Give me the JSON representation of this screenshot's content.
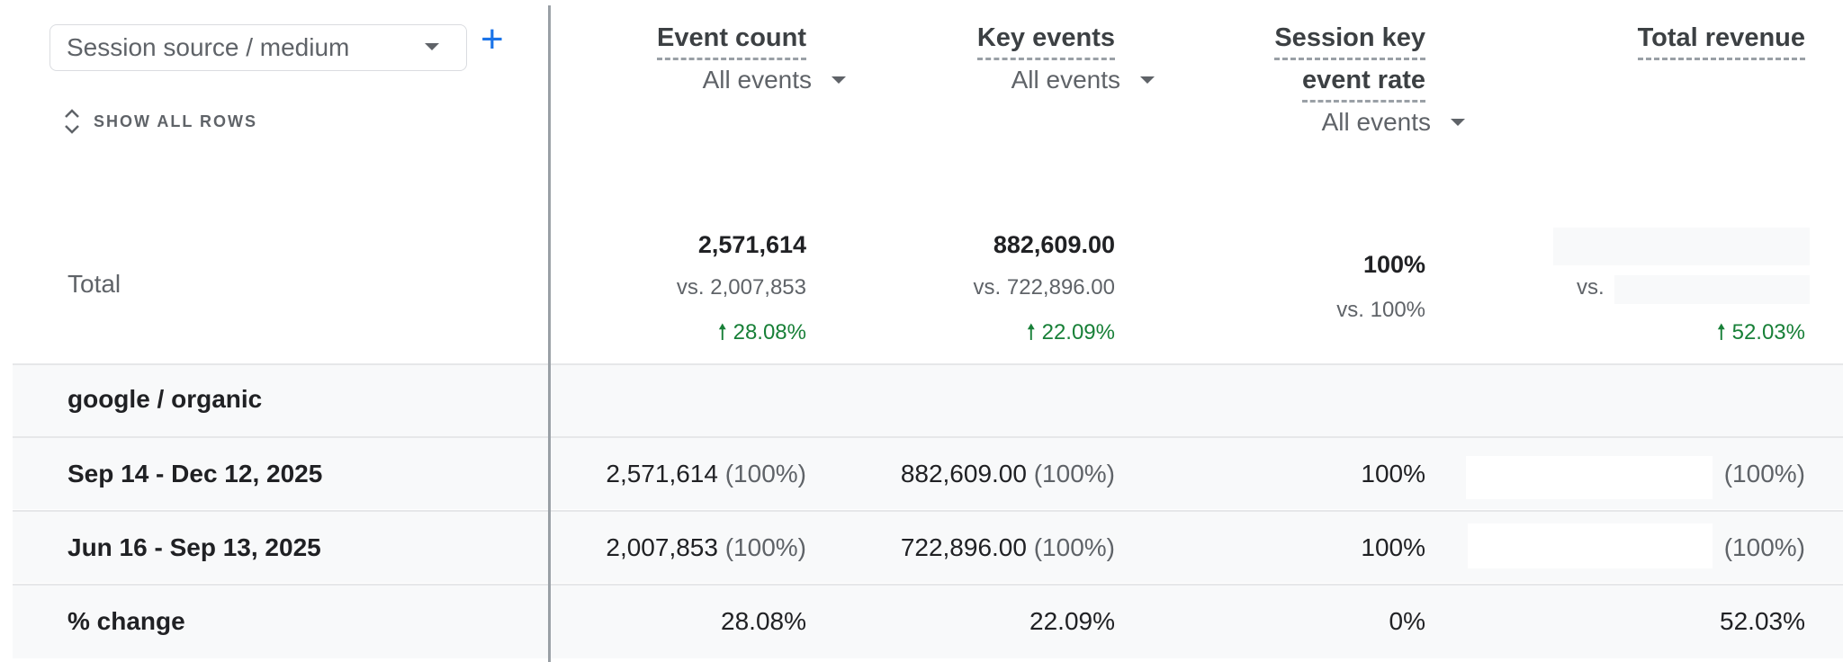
{
  "dimension": {
    "selected": "Session source / medium",
    "add_label": "+"
  },
  "show_all_rows": "SHOW ALL ROWS",
  "columns": [
    {
      "title": "Event count",
      "filter": "All events"
    },
    {
      "title": "Key events",
      "filter": "All events"
    },
    {
      "title_line1": "Session key",
      "title_line2": "event rate",
      "filter": "All events"
    },
    {
      "title": "Total revenue"
    }
  ],
  "total": {
    "label": "Total",
    "event_count": {
      "value": "2,571,614",
      "vs": "vs. 2,007,853",
      "change": "28.08%"
    },
    "key_events": {
      "value": "882,609.00",
      "vs": "vs. 722,896.00",
      "change": "22.09%"
    },
    "session_key_event_rate": {
      "value": "100%",
      "vs": "vs. 100%"
    },
    "total_revenue": {
      "vs": "vs.",
      "change": "52.03%"
    }
  },
  "group_label": "google / organic",
  "rows": [
    {
      "label": "Sep 14 - Dec 12, 2025",
      "event_count": "2,571,614",
      "event_count_share": "(100%)",
      "key_events": "882,609.00",
      "key_events_share": "(100%)",
      "rate": "100%",
      "revenue_share": "(100%)"
    },
    {
      "label": "Jun 16 - Sep 13, 2025",
      "event_count": "2,007,853",
      "event_count_share": "(100%)",
      "key_events": "722,896.00",
      "key_events_share": "(100%)",
      "rate": "100%",
      "revenue_share": "(100%)"
    }
  ],
  "change_row": {
    "label": "% change",
    "event_count": "28.08%",
    "key_events": "22.09%",
    "rate": "0%",
    "revenue": "52.03%"
  },
  "colors": {
    "positive": "#188038",
    "accent": "#1a73e8"
  }
}
